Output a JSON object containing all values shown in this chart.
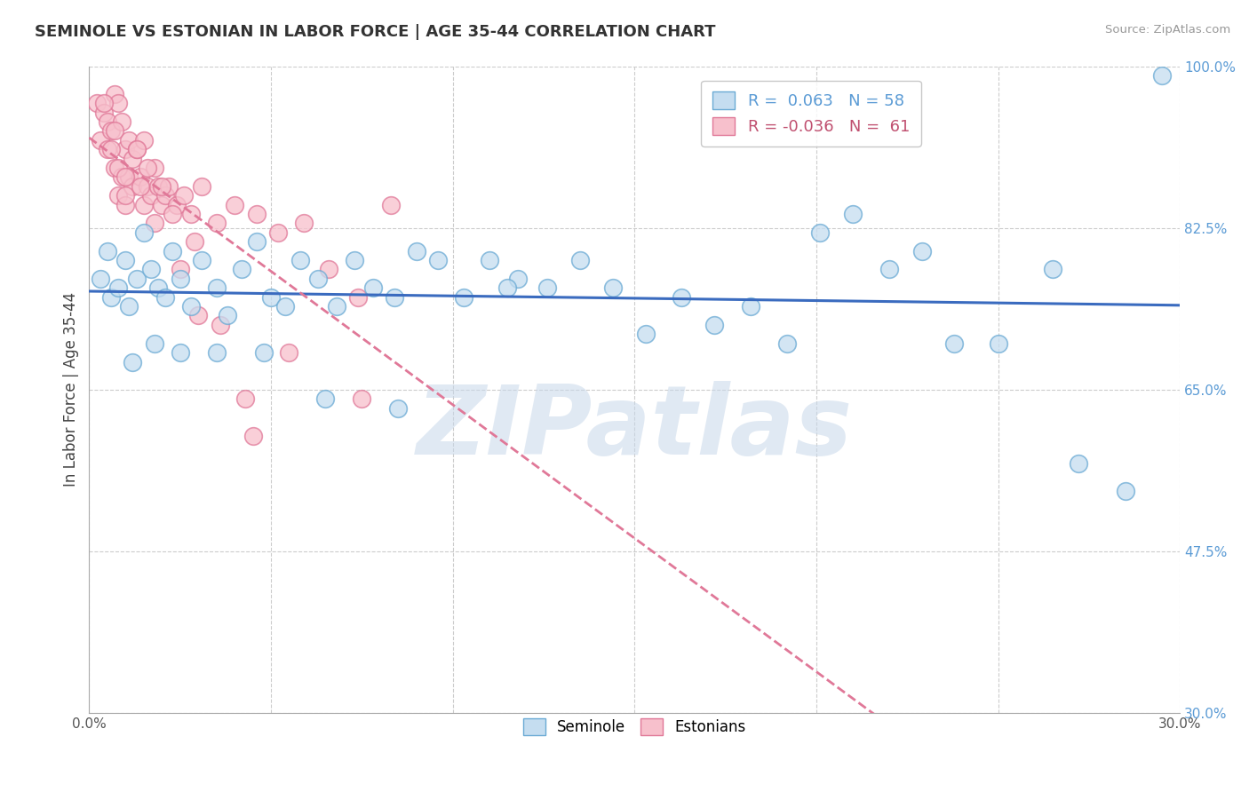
{
  "title": "SEMINOLE VS ESTONIAN IN LABOR FORCE | AGE 35-44 CORRELATION CHART",
  "source_text": "Source: ZipAtlas.com",
  "ylabel": "In Labor Force | Age 35-44",
  "xlim": [
    0.0,
    30.0
  ],
  "ylim": [
    30.0,
    100.0
  ],
  "x_ticks": [
    0.0,
    5.0,
    10.0,
    15.0,
    20.0,
    25.0,
    30.0
  ],
  "x_tick_labels": [
    "0.0%",
    "",
    "",
    "",
    "",
    "",
    "30.0%"
  ],
  "y_right_ticks": [
    30.0,
    47.5,
    65.0,
    82.5,
    100.0
  ],
  "y_right_labels": [
    "30.0%",
    "47.5%",
    "65.0%",
    "82.5%",
    "100.0%"
  ],
  "seminole_R": "0.063",
  "seminole_N": 58,
  "estonian_R": "-0.036",
  "estonian_N": 61,
  "blue_face": "#c5ddf0",
  "blue_edge": "#6aaad4",
  "pink_face": "#f7c0cc",
  "pink_edge": "#e07898",
  "blue_line": "#3a6bbf",
  "pink_line": "#e07898",
  "watermark": "ZIPatlas",
  "watermark_color": "#c8d8ea",
  "grid_color": "#cccccc",
  "blue_x": [
    0.3,
    0.5,
    0.6,
    0.8,
    1.0,
    1.1,
    1.3,
    1.5,
    1.7,
    1.9,
    2.1,
    2.3,
    2.5,
    2.8,
    3.1,
    3.5,
    3.8,
    4.2,
    4.6,
    5.0,
    5.4,
    5.8,
    6.3,
    6.8,
    7.3,
    7.8,
    8.4,
    9.0,
    9.6,
    10.3,
    11.0,
    11.8,
    12.6,
    13.5,
    14.4,
    15.3,
    16.3,
    17.2,
    18.2,
    19.2,
    20.1,
    21.0,
    22.0,
    22.9,
    23.8,
    25.0,
    26.5,
    27.2,
    28.5,
    29.5,
    1.2,
    1.8,
    2.5,
    3.5,
    4.8,
    6.5,
    8.5,
    11.5
  ],
  "blue_y": [
    77,
    80,
    75,
    76,
    79,
    74,
    77,
    82,
    78,
    76,
    75,
    80,
    77,
    74,
    79,
    76,
    73,
    78,
    81,
    75,
    74,
    79,
    77,
    74,
    79,
    76,
    75,
    80,
    79,
    75,
    79,
    77,
    76,
    79,
    76,
    71,
    75,
    72,
    74,
    70,
    82,
    84,
    78,
    80,
    70,
    70,
    78,
    57,
    54,
    99,
    68,
    70,
    69,
    69,
    69,
    64,
    63,
    76
  ],
  "pink_x": [
    0.2,
    0.3,
    0.4,
    0.5,
    0.5,
    0.6,
    0.7,
    0.7,
    0.8,
    0.8,
    0.9,
    0.9,
    1.0,
    1.0,
    1.1,
    1.1,
    1.2,
    1.2,
    1.3,
    1.4,
    1.5,
    1.5,
    1.6,
    1.7,
    1.8,
    1.9,
    2.0,
    2.1,
    2.2,
    2.4,
    2.6,
    2.8,
    3.1,
    3.5,
    4.0,
    4.6,
    5.2,
    5.9,
    6.6,
    7.4,
    8.3,
    0.6,
    0.8,
    1.0,
    1.3,
    1.6,
    2.0,
    2.5,
    3.0,
    3.6,
    4.3,
    5.5,
    7.5,
    0.4,
    0.7,
    1.0,
    1.4,
    1.8,
    2.3,
    2.9,
    4.5
  ],
  "pink_y": [
    96,
    92,
    95,
    94,
    91,
    93,
    97,
    89,
    96,
    86,
    94,
    88,
    91,
    85,
    92,
    88,
    90,
    87,
    91,
    88,
    92,
    85,
    87,
    86,
    89,
    87,
    85,
    86,
    87,
    85,
    86,
    84,
    87,
    83,
    85,
    84,
    82,
    83,
    78,
    75,
    85,
    91,
    89,
    86,
    91,
    89,
    87,
    78,
    73,
    72,
    64,
    69,
    64,
    96,
    93,
    88,
    87,
    83,
    84,
    81,
    60
  ]
}
